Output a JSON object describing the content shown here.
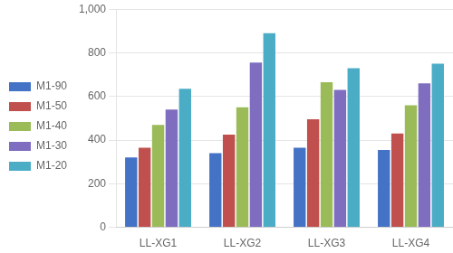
{
  "chart_data": {
    "type": "bar",
    "categories": [
      "LL-XG1",
      "LL-XG2",
      "LL-XG3",
      "LL-XG4"
    ],
    "series": [
      {
        "name": "M1-90",
        "color": "#4472C4",
        "values": [
          320,
          340,
          365,
          355
        ]
      },
      {
        "name": "M1-50",
        "color": "#C0504D",
        "values": [
          365,
          425,
          495,
          430
        ]
      },
      {
        "name": "M1-40",
        "color": "#9BBB59",
        "values": [
          470,
          550,
          665,
          560
        ]
      },
      {
        "name": "M1-30",
        "color": "#7F6DC0",
        "values": [
          540,
          755,
          630,
          660
        ]
      },
      {
        "name": "M1-20",
        "color": "#4BACC6",
        "values": [
          635,
          890,
          730,
          750
        ]
      }
    ],
    "ylim": [
      0,
      1000
    ],
    "yticks": [
      0,
      200,
      400,
      600,
      800,
      1000
    ],
    "grid": true,
    "legend": "left"
  }
}
